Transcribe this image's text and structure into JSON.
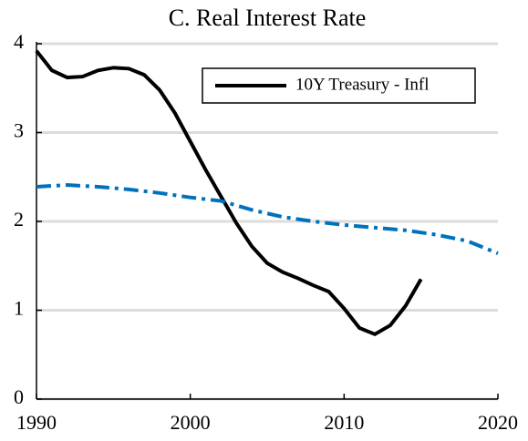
{
  "chart_data": {
    "type": "line",
    "title": "C. Real Interest Rate",
    "xlim": [
      1990,
      2020
    ],
    "xticks": [
      1990,
      2000,
      2010,
      2020
    ],
    "ylim": [
      0,
      4
    ],
    "yticks": [
      0,
      1,
      2,
      3,
      4
    ],
    "grid": true,
    "legend": "upper right",
    "series": [
      {
        "name": "10Y Treasury - Infl",
        "color": "#000000",
        "style": "solid",
        "x": [
          1990,
          1991,
          1992,
          1993,
          1994,
          1995,
          1996,
          1997,
          1998,
          1999,
          2000,
          2001,
          2002,
          2003,
          2004,
          2005,
          2006,
          2007,
          2008,
          2009,
          2010,
          2011,
          2012,
          2013,
          2014,
          2015
        ],
        "values": [
          3.92,
          3.7,
          3.62,
          3.63,
          3.7,
          3.73,
          3.72,
          3.65,
          3.48,
          3.22,
          2.9,
          2.58,
          2.28,
          1.98,
          1.72,
          1.53,
          1.43,
          1.36,
          1.28,
          1.21,
          1.02,
          0.8,
          0.73,
          0.83,
          1.05,
          1.35
        ]
      },
      {
        "color": "#0072bd",
        "style": "dashdot",
        "x": [
          1990,
          1992,
          1994,
          1996,
          1998,
          2000,
          2002,
          2004,
          2006,
          2008,
          2010,
          2012,
          2014,
          2016,
          2018,
          2020
        ],
        "values": [
          2.39,
          2.41,
          2.39,
          2.36,
          2.32,
          2.27,
          2.23,
          2.13,
          2.05,
          2.0,
          1.96,
          1.93,
          1.9,
          1.85,
          1.78,
          1.64
        ]
      }
    ]
  }
}
